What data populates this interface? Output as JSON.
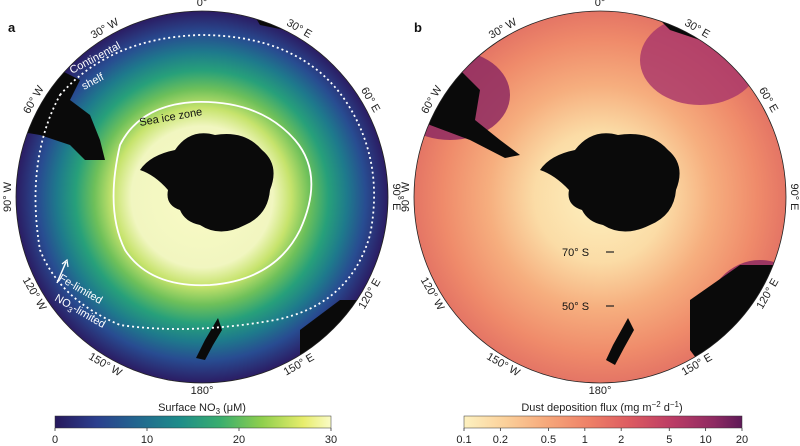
{
  "panel_a": {
    "letter": "a",
    "longitude_labels": [
      "0°",
      "30° E",
      "60° E",
      "90° E",
      "120° E",
      "150° E",
      "180°",
      "150° W",
      "120° W",
      "90° W",
      "60° W",
      "30° W"
    ],
    "annotations": {
      "continental_shelf_line1": "Continental",
      "continental_shelf_line2": "shelf",
      "sea_ice_zone": "Sea ice zone",
      "fe_limited": "Fe-limited",
      "no3_limited_prefix": "NO",
      "no3_limited_sub": "3",
      "no3_limited_suffix": "-limited"
    },
    "colorbar": {
      "title_prefix": "Surface NO",
      "title_sub": "3",
      "title_suffix": " (μM)",
      "ticks": [
        "0",
        "10",
        "20",
        "30"
      ],
      "tick_values": [
        0,
        10,
        20,
        30
      ],
      "range": [
        0,
        30
      ],
      "colors": [
        "#26185c",
        "#2b3f8e",
        "#22678f",
        "#1d8c8a",
        "#3aae6e",
        "#8fcf4d",
        "#e7ed6c",
        "#fafbc6"
      ]
    }
  },
  "panel_b": {
    "letter": "b",
    "longitude_labels": [
      "0°",
      "30° E",
      "60° E",
      "90° E",
      "120° E",
      "150° E",
      "180°",
      "150° W",
      "120° W",
      "90° W",
      "60° W",
      "30° W"
    ],
    "latitude_labels": [
      "70° S",
      "50° S"
    ],
    "colorbar": {
      "title_prefix": "Dust deposition flux (mg m",
      "title_sup1": "−2",
      "title_mid": " d",
      "title_sup2": "−1",
      "title_suffix": ")",
      "ticks": [
        "0.1",
        "0.2",
        "0.5",
        "1",
        "2",
        "5",
        "10",
        "20"
      ],
      "tick_values": [
        0.1,
        0.2,
        0.5,
        1,
        2,
        5,
        10,
        20
      ],
      "range": [
        0.1,
        20
      ],
      "scale": "log",
      "colors": [
        "#fdf1c0",
        "#fbd09a",
        "#f6a77a",
        "#ee8067",
        "#dc5a61",
        "#bb3c65",
        "#8e2a62",
        "#5e1a57"
      ]
    }
  }
}
